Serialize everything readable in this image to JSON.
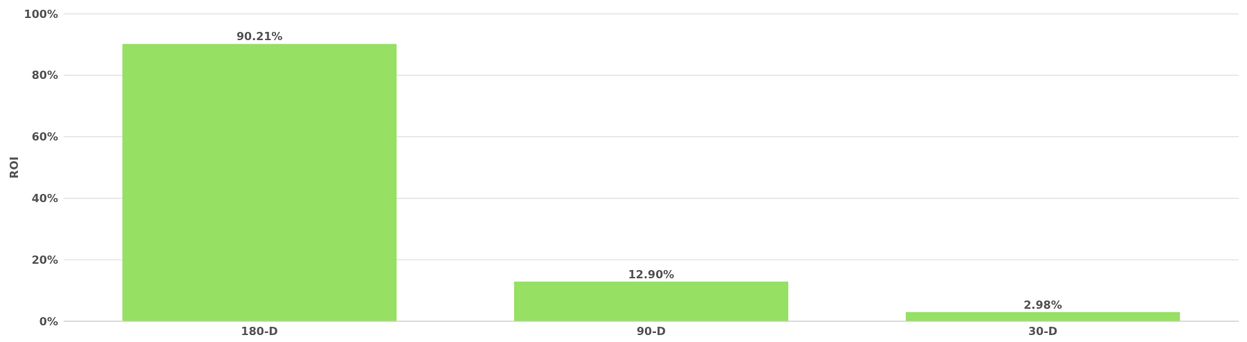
{
  "chart_data": {
    "type": "bar",
    "ylabel": "ROI",
    "categories": [
      "180-D",
      "90-D",
      "30-D"
    ],
    "values": [
      90.21,
      12.9,
      2.98
    ],
    "value_labels": [
      "90.21%",
      "12.90%",
      "2.98%"
    ],
    "color": "#96e064",
    "ylim": [
      0,
      100
    ],
    "yticks": [
      {
        "value": 0,
        "label": "0%"
      },
      {
        "value": 20,
        "label": "20%"
      },
      {
        "value": 40,
        "label": "40%"
      },
      {
        "value": 60,
        "label": "60%"
      },
      {
        "value": 80,
        "label": "80%"
      },
      {
        "value": 100,
        "label": "100%"
      }
    ],
    "grid": "y"
  }
}
